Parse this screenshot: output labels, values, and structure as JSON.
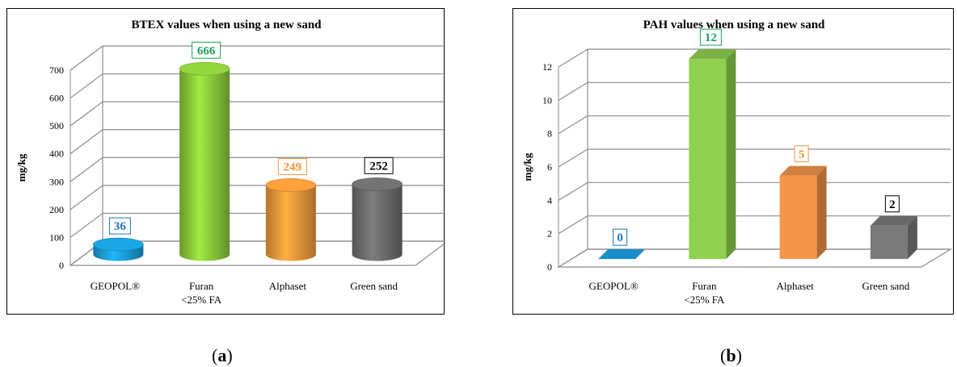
{
  "chart_data": [
    {
      "type": "bar",
      "title": "BTEX values when using a new sand",
      "ylabel": "mg/kg",
      "xlabel": "",
      "categories": [
        "GEOPOL®",
        "Furan\n<25% FA",
        "Alphaset",
        "Green sand"
      ],
      "values": [
        36,
        666,
        249,
        252
      ],
      "labels": [
        "36",
        "666",
        "249",
        "252"
      ],
      "ylim": [
        0,
        700
      ],
      "yticks": [
        "0",
        "100",
        "200",
        "300",
        "400",
        "500",
        "600",
        "700"
      ],
      "shape": "cylinder",
      "grid": true,
      "colors": [
        "#1a9fdc",
        "#8ccc3a",
        "#f59a3a",
        "#6e6e6e"
      ],
      "label_colors": [
        "#1b76b9",
        "#1aa05a",
        "#f5933a",
        "#000000"
      ]
    },
    {
      "type": "bar",
      "title": "PAH values when using a new sand",
      "ylabel": "mg/kg",
      "xlabel": "",
      "categories": [
        "GEOPOL®",
        "Furan\n<25% FA",
        "Alphaset",
        "Green sand"
      ],
      "values": [
        0,
        12,
        5,
        2
      ],
      "labels": [
        "0",
        "12",
        "5",
        "2"
      ],
      "ylim": [
        0,
        12
      ],
      "yticks": [
        "0",
        "2",
        "4",
        "6",
        "8",
        "10",
        "12"
      ],
      "shape": "box",
      "grid": true,
      "colors": [
        "#1a8ccc",
        "#8fd14f",
        "#f5954a",
        "#7a7a7a"
      ],
      "label_colors": [
        "#1b76b9",
        "#1aa05a",
        "#f5933a",
        "#000000"
      ]
    }
  ],
  "captions": [
    "a",
    "b"
  ]
}
